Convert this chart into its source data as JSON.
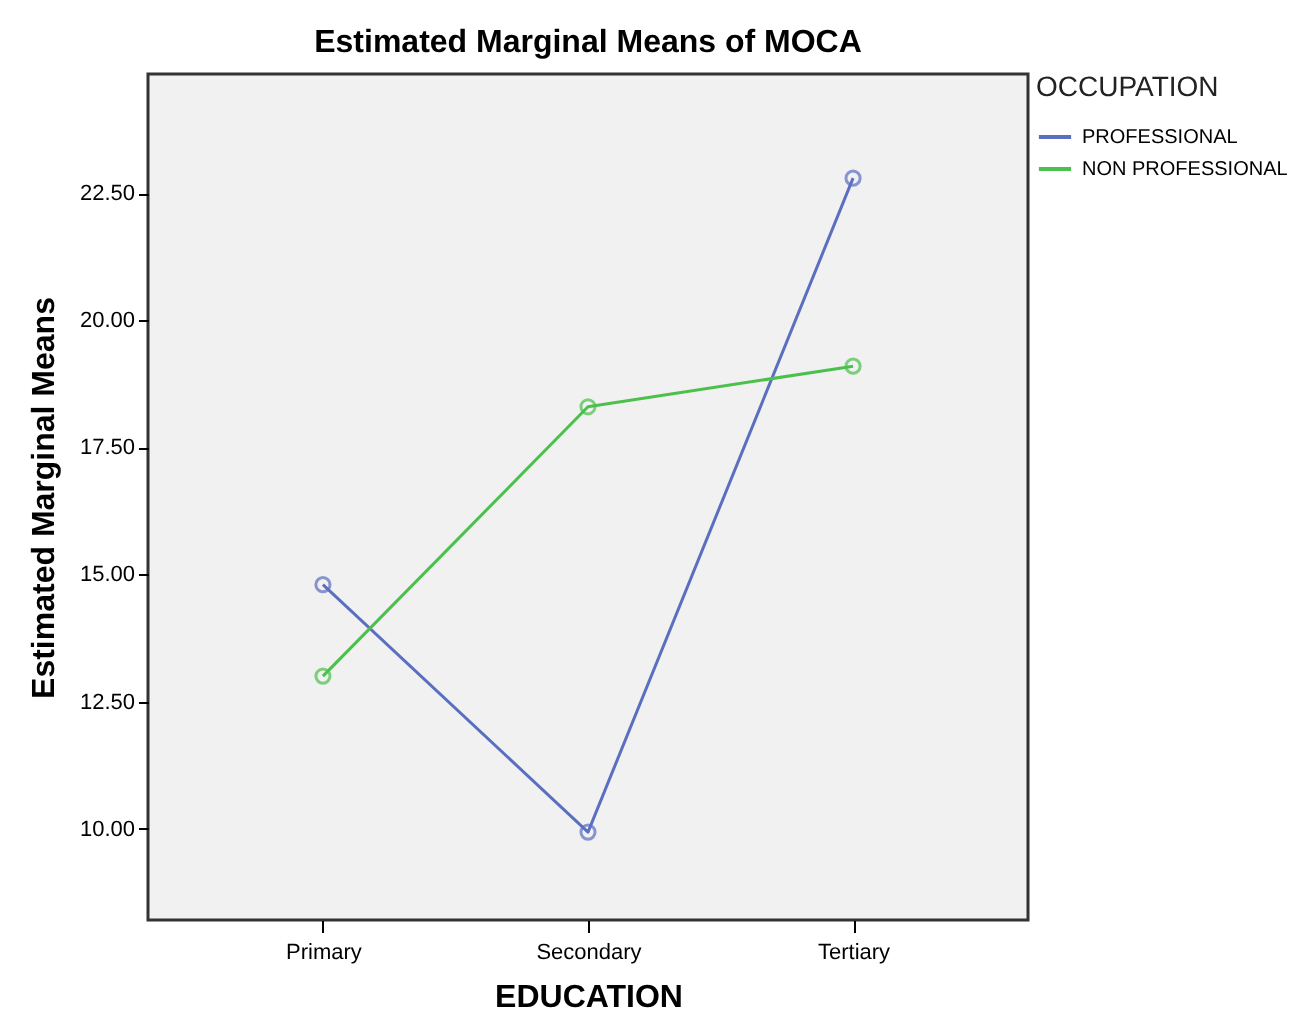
{
  "chart_data": {
    "type": "line",
    "title": "Estimated Marginal Means of MOCA",
    "xlabel": "EDUCATION",
    "ylabel": "Estimated Marginal Means",
    "legend_title": "OCCUPATION",
    "categories": [
      "Primary",
      "Secondary",
      "Tertiary"
    ],
    "series": [
      {
        "name": "PROFESSIONAL",
        "color": "#5b6fc0",
        "values": [
          14.8,
          9.93,
          22.8
        ]
      },
      {
        "name": "NON PROFESSIONAL",
        "color": "#4cc04c",
        "values": [
          13.0,
          18.3,
          19.1
        ]
      }
    ],
    "ylim": [
      8.2,
      24.85
    ],
    "yticks": [
      {
        "value": 10,
        "label": "10.00"
      },
      {
        "value": 12.5,
        "label": "12.50"
      },
      {
        "value": 15,
        "label": "15.00"
      },
      {
        "value": 17.5,
        "label": "17.50"
      },
      {
        "value": 20,
        "label": "20.00"
      },
      {
        "value": 22.5,
        "label": "22.50"
      }
    ],
    "grid": false,
    "legend": "top right",
    "marker": "circle",
    "line_style": "solid"
  }
}
